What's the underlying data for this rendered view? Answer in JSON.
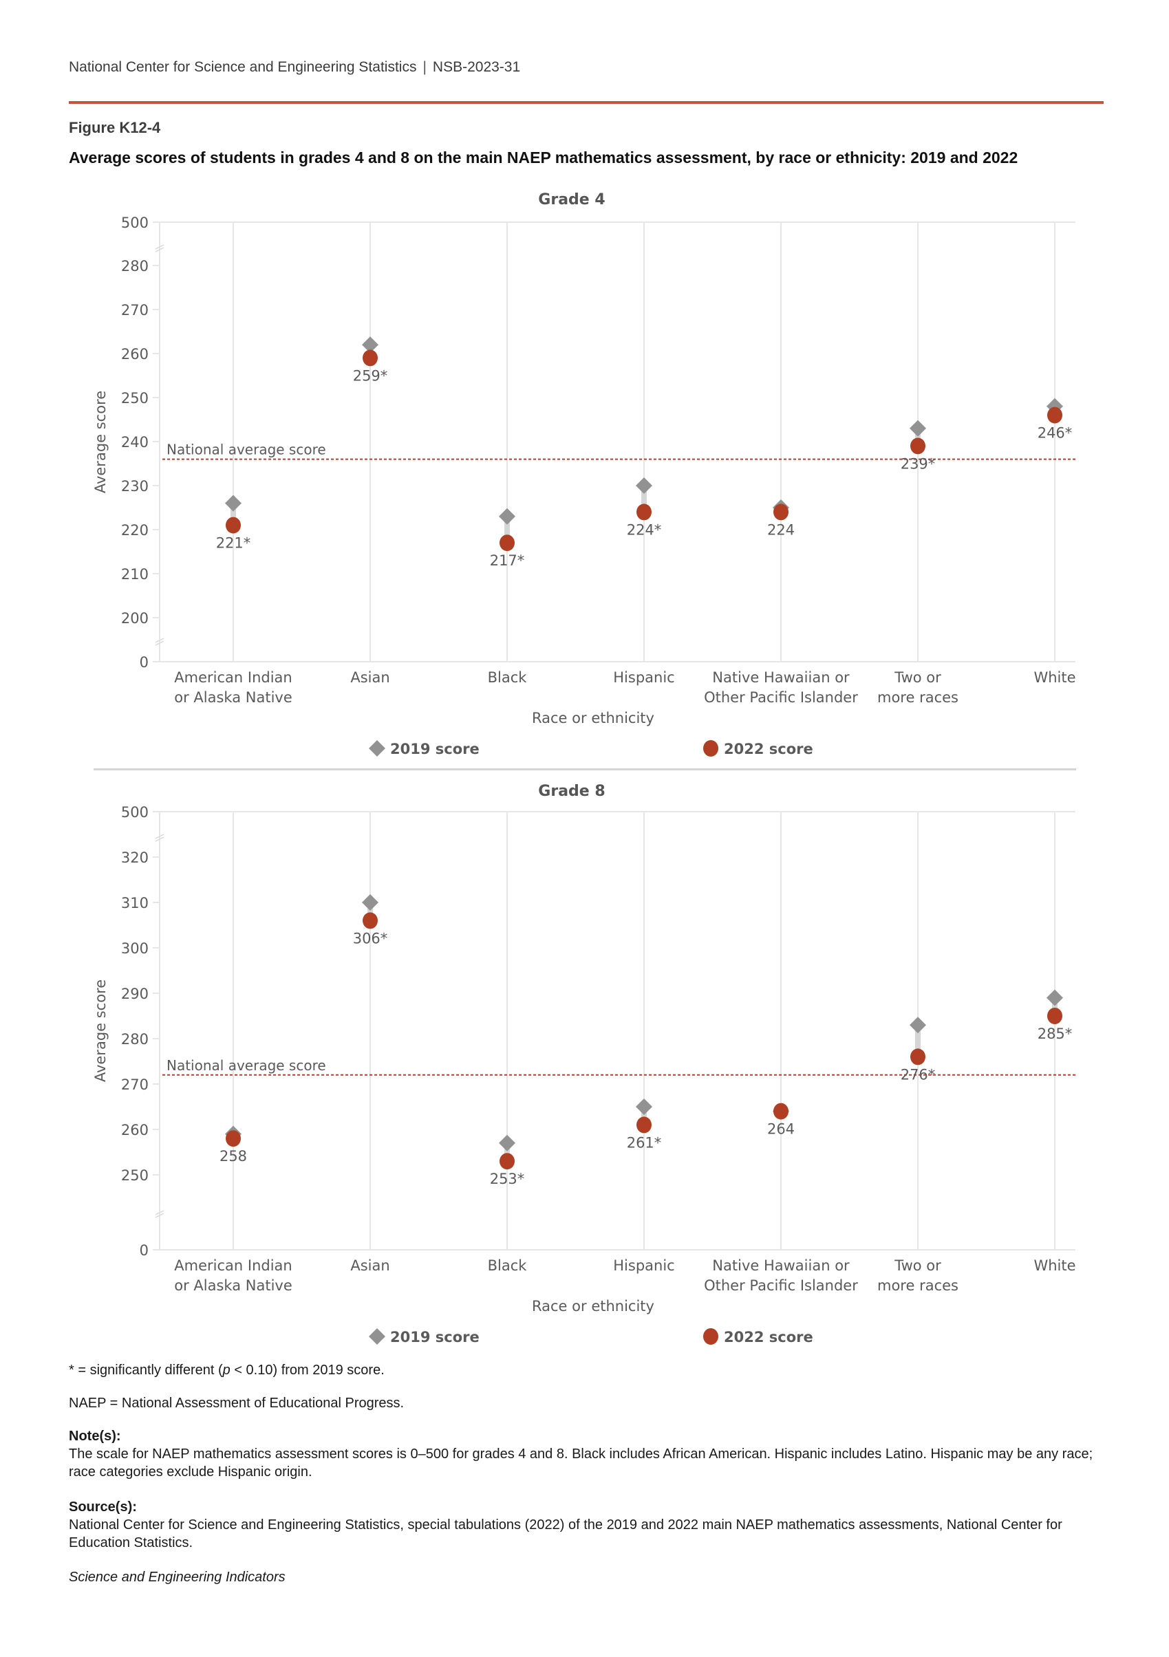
{
  "header": {
    "org": "National Center for Science and Engineering Statistics",
    "separator": "|",
    "report_id": "NSB-2023-31"
  },
  "figure": {
    "label": "Figure K12-4",
    "title": "Average scores of students in grades 4 and 8 on the main NAEP mathematics assessment, by race or ethnicity: 2019 and 2022"
  },
  "colors": {
    "accent_rule": "#c9533a",
    "score_2019": "#929292",
    "score_2022": "#b03e22",
    "national_avg_line": "#c0392b",
    "grid": "#e6e6e6",
    "text_gray": "#5a5a5a"
  },
  "chart_data": [
    {
      "type": "scatter",
      "title": "Grade 4",
      "xlabel": "Race or ethnicity",
      "ylabel": "Average score",
      "categories": [
        [
          "American Indian",
          "or Alaska Native"
        ],
        [
          "Asian"
        ],
        [
          "Black"
        ],
        [
          "Hispanic"
        ],
        [
          "Native Hawaiian or",
          "Other Pacific Islander"
        ],
        [
          "Two or",
          "more races"
        ],
        [
          "White"
        ]
      ],
      "yticks": [
        0,
        200,
        210,
        220,
        230,
        240,
        250,
        260,
        270,
        280,
        500
      ],
      "axis_breaks": [
        "between 0 and 200",
        "between 280 and 500"
      ],
      "ylim_visible": [
        195,
        285
      ],
      "reference_line": {
        "label": "National average score",
        "value": 236
      },
      "series": [
        {
          "name": "2019 score",
          "marker": "diamond",
          "values": [
            226,
            262,
            223,
            230,
            225,
            243,
            248
          ]
        },
        {
          "name": "2022 score",
          "marker": "circle",
          "values": [
            221,
            259,
            217,
            224,
            224,
            239,
            246
          ]
        }
      ],
      "data_labels": [
        "221*",
        "259*",
        "217*",
        "224*",
        "224",
        "239*",
        "246*"
      ],
      "legend": {
        "position": "bottom",
        "entries": [
          "2019 score",
          "2022 score"
        ]
      },
      "grid": true
    },
    {
      "type": "scatter",
      "title": "Grade 8",
      "xlabel": "Race or ethnicity",
      "ylabel": "Average score",
      "categories": [
        [
          "American Indian",
          "or Alaska Native"
        ],
        [
          "Asian"
        ],
        [
          "Black"
        ],
        [
          "Hispanic"
        ],
        [
          "Native Hawaiian or",
          "Other Pacific Islander"
        ],
        [
          "Two or",
          "more races"
        ],
        [
          "White"
        ]
      ],
      "yticks": [
        0,
        250,
        260,
        270,
        280,
        290,
        300,
        310,
        320,
        500
      ],
      "axis_breaks": [
        "between 0 and 250",
        "between 320 and 500"
      ],
      "ylim_visible": [
        240,
        325
      ],
      "reference_line": {
        "label": "National average score",
        "value": 272
      },
      "series": [
        {
          "name": "2019 score",
          "marker": "diamond",
          "values": [
            259,
            310,
            257,
            265,
            264,
            283,
            289
          ]
        },
        {
          "name": "2022 score",
          "marker": "circle",
          "values": [
            258,
            306,
            253,
            261,
            264,
            276,
            285
          ]
        }
      ],
      "data_labels": [
        "258",
        "306*",
        "253*",
        "261*",
        "264",
        "276*",
        "285*"
      ],
      "legend": {
        "position": "bottom",
        "entries": [
          "2019 score",
          "2022 score"
        ]
      },
      "grid": true
    }
  ],
  "footnotes": {
    "significance_prefix": "* = significantly different (",
    "significance_p": "p",
    "significance_suffix": " < 0.10) from 2019 score.",
    "abbreviation": "NAEP = National Assessment of Educational Progress.",
    "notes_heading": "Note(s):",
    "notes_body": "The scale for NAEP mathematics assessment scores is 0–500 for grades 4 and 8. Black includes African American. Hispanic includes Latino. Hispanic may be any race; race categories exclude Hispanic origin.",
    "sources_heading": "Source(s):",
    "sources_body": "National Center for Science and Engineering Statistics, special tabulations (2022) of the 2019 and 2022 main NAEP mathematics assessments, National Center for Education Statistics.",
    "publication": "Science and Engineering Indicators"
  }
}
